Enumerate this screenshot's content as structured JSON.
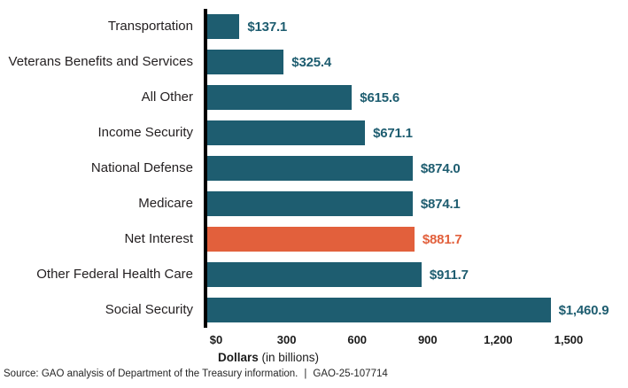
{
  "chart_data": {
    "type": "bar",
    "orientation": "horizontal",
    "title": "",
    "categories": [
      "Transportation",
      "Veterans Benefits and Services",
      "All Other",
      "Income Security",
      "National Defense",
      "Medicare",
      "Net Interest",
      "Other Federal Health Care",
      "Social Security"
    ],
    "values": [
      137.1,
      325.4,
      615.6,
      671.1,
      874.0,
      874.1,
      881.7,
      911.7,
      1460.9
    ],
    "value_labels": [
      "$137.1",
      "$325.4",
      "$615.6",
      "$671.1",
      "$874.0",
      "$874.1",
      "$881.7",
      "$911.7",
      "$1,460.9"
    ],
    "highlighted_category": "Net Interest",
    "bar_color": "#1e5d70",
    "highlight_color": "#e2603c",
    "axis_line_color": "#000000",
    "xlabel_bold": "Dollars",
    "xlabel_rest": " (in billions)",
    "x_ticks": [
      "$0",
      "300",
      "600",
      "900",
      "1,200",
      "1,500"
    ],
    "x_tick_values": [
      0,
      300,
      600,
      900,
      1200,
      1500
    ],
    "xlim": [
      0,
      1500
    ],
    "grid": false,
    "legend": "none"
  },
  "footer": {
    "source": "Source: GAO analysis of Department of the Treasury information.",
    "separator": "|",
    "report_id": "GAO-25-107714"
  }
}
